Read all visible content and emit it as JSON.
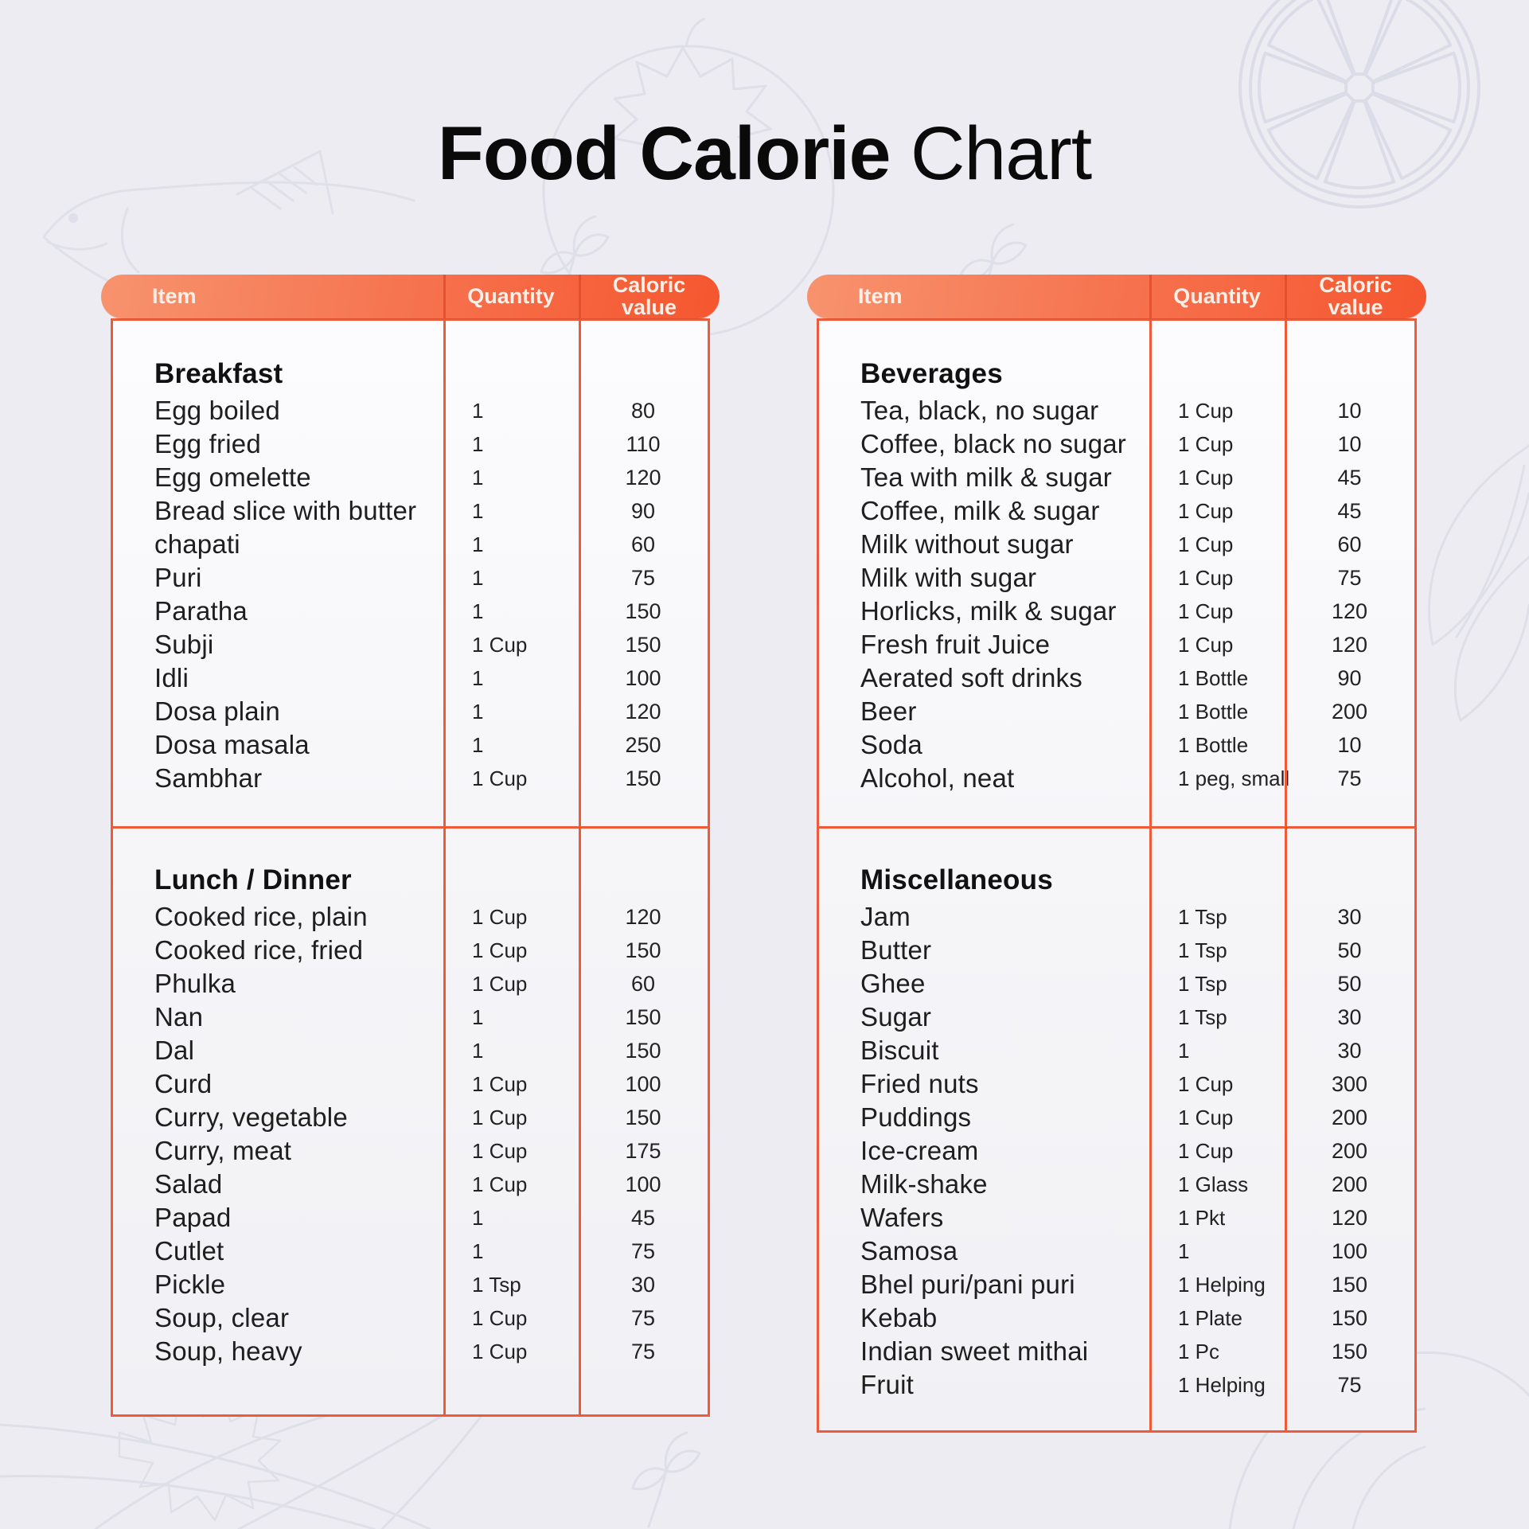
{
  "title": {
    "main": "Food Calorie",
    "accent": "Chart"
  },
  "header": {
    "item": "Item",
    "quantity": "Quantity",
    "caloric_line1": "Caloric",
    "caloric_line2": "value"
  },
  "colors": {
    "page_background": "#ececf2",
    "header_gradient_start": "#f7936e",
    "header_gradient_end": "#f5572f",
    "table_border": "#ed5b3a",
    "header_text": "#fcefe7",
    "body_text": "#202020",
    "decor_stroke": "#dfdfea"
  },
  "decor_icons": [
    "tomato-outline-icon",
    "lemon-slice-icon",
    "fish-outline-icon",
    "parsley-sprig-icon",
    "celery-leaves-icon",
    "onion-outline-icon"
  ],
  "chart_data": {
    "type": "table",
    "title": "Food Calorie Chart",
    "columns": [
      "Item",
      "Quantity",
      "Caloric value"
    ],
    "tables": [
      {
        "position": "left",
        "sections": [
          {
            "heading": "Breakfast",
            "rows": [
              {
                "item": "Egg boiled",
                "quantity": "1",
                "caloric_value": "80"
              },
              {
                "item": "Egg fried",
                "quantity": "1",
                "caloric_value": "110"
              },
              {
                "item": "Egg omelette",
                "quantity": "1",
                "caloric_value": "120"
              },
              {
                "item": "Bread slice with butter",
                "quantity": "1",
                "caloric_value": "90"
              },
              {
                "item": "chapati",
                "quantity": "1",
                "caloric_value": "60"
              },
              {
                "item": "Puri",
                "quantity": "1",
                "caloric_value": "75"
              },
              {
                "item": "Paratha",
                "quantity": "1",
                "caloric_value": "150"
              },
              {
                "item": "Subji",
                "quantity": "1 Cup",
                "caloric_value": "150"
              },
              {
                "item": "Idli",
                "quantity": "1",
                "caloric_value": "100"
              },
              {
                "item": "Dosa plain",
                "quantity": "1",
                "caloric_value": "120"
              },
              {
                "item": "Dosa masala",
                "quantity": "1",
                "caloric_value": "250"
              },
              {
                "item": "Sambhar",
                "quantity": "1 Cup",
                "caloric_value": "150"
              }
            ]
          },
          {
            "heading": "Lunch / Dinner",
            "rows": [
              {
                "item": "Cooked rice, plain",
                "quantity": "1 Cup",
                "caloric_value": "120"
              },
              {
                "item": "Cooked rice, fried",
                "quantity": "1 Cup",
                "caloric_value": "150"
              },
              {
                "item": "Phulka",
                "quantity": "1 Cup",
                "caloric_value": "60"
              },
              {
                "item": "Nan",
                "quantity": "1",
                "caloric_value": "150"
              },
              {
                "item": "Dal",
                "quantity": "1",
                "caloric_value": "150"
              },
              {
                "item": "Curd",
                "quantity": "1 Cup",
                "caloric_value": "100"
              },
              {
                "item": "Curry, vegetable",
                "quantity": "1 Cup",
                "caloric_value": "150"
              },
              {
                "item": "Curry, meat",
                "quantity": "1 Cup",
                "caloric_value": "175"
              },
              {
                "item": "Salad",
                "quantity": "1 Cup",
                "caloric_value": "100"
              },
              {
                "item": "Papad",
                "quantity": "1",
                "caloric_value": "45"
              },
              {
                "item": "Cutlet",
                "quantity": "1",
                "caloric_value": "75"
              },
              {
                "item": "Pickle",
                "quantity": "1 Tsp",
                "caloric_value": "30"
              },
              {
                "item": "Soup, clear",
                "quantity": "1 Cup",
                "caloric_value": "75"
              },
              {
                "item": "Soup, heavy",
                "quantity": "1 Cup",
                "caloric_value": "75"
              }
            ]
          }
        ]
      },
      {
        "position": "right",
        "sections": [
          {
            "heading": "Beverages",
            "rows": [
              {
                "item": "Tea, black, no sugar",
                "quantity": "1 Cup",
                "caloric_value": "10"
              },
              {
                "item": "Coffee, black no sugar",
                "quantity": "1 Cup",
                "caloric_value": "10"
              },
              {
                "item": "Tea with milk & sugar",
                "quantity": "1 Cup",
                "caloric_value": "45"
              },
              {
                "item": "Coffee, milk & sugar",
                "quantity": "1 Cup",
                "caloric_value": "45"
              },
              {
                "item": "Milk without sugar",
                "quantity": "1 Cup",
                "caloric_value": "60"
              },
              {
                "item": "Milk with sugar",
                "quantity": "1 Cup",
                "caloric_value": "75"
              },
              {
                "item": "Horlicks, milk & sugar",
                "quantity": "1 Cup",
                "caloric_value": "120"
              },
              {
                "item": "Fresh fruit Juice",
                "quantity": "1 Cup",
                "caloric_value": "120"
              },
              {
                "item": "Aerated soft drinks",
                "quantity": "1 Bottle",
                "caloric_value": "90"
              },
              {
                "item": "Beer",
                "quantity": "1 Bottle",
                "caloric_value": "200"
              },
              {
                "item": "Soda",
                "quantity": "1 Bottle",
                "caloric_value": "10"
              },
              {
                "item": "Alcohol, neat",
                "quantity": "1 peg, small",
                "caloric_value": "75"
              }
            ]
          },
          {
            "heading": "Miscellaneous",
            "rows": [
              {
                "item": "Jam",
                "quantity": "1 Tsp",
                "caloric_value": "30"
              },
              {
                "item": "Butter",
                "quantity": "1 Tsp",
                "caloric_value": "50"
              },
              {
                "item": "Ghee",
                "quantity": "1 Tsp",
                "caloric_value": "50"
              },
              {
                "item": "Sugar",
                "quantity": "1 Tsp",
                "caloric_value": "30"
              },
              {
                "item": "Biscuit",
                "quantity": "1",
                "caloric_value": "30"
              },
              {
                "item": "Fried nuts",
                "quantity": "1 Cup",
                "caloric_value": "300"
              },
              {
                "item": "Puddings",
                "quantity": "1 Cup",
                "caloric_value": "200"
              },
              {
                "item": "Ice-cream",
                "quantity": "1 Cup",
                "caloric_value": "200"
              },
              {
                "item": "Milk-shake",
                "quantity": "1 Glass",
                "caloric_value": "200"
              },
              {
                "item": "Wafers",
                "quantity": "1 Pkt",
                "caloric_value": "120"
              },
              {
                "item": "Samosa",
                "quantity": "1",
                "caloric_value": "100"
              },
              {
                "item": "Bhel puri/pani puri",
                "quantity": "1 Helping",
                "caloric_value": "150"
              },
              {
                "item": "Kebab",
                "quantity": "1 Plate",
                "caloric_value": "150"
              },
              {
                "item": "Indian sweet mithai",
                "quantity": "1 Pc",
                "caloric_value": "150"
              },
              {
                "item": "Fruit",
                "quantity": "1 Helping",
                "caloric_value": "75"
              }
            ]
          }
        ]
      }
    ]
  }
}
